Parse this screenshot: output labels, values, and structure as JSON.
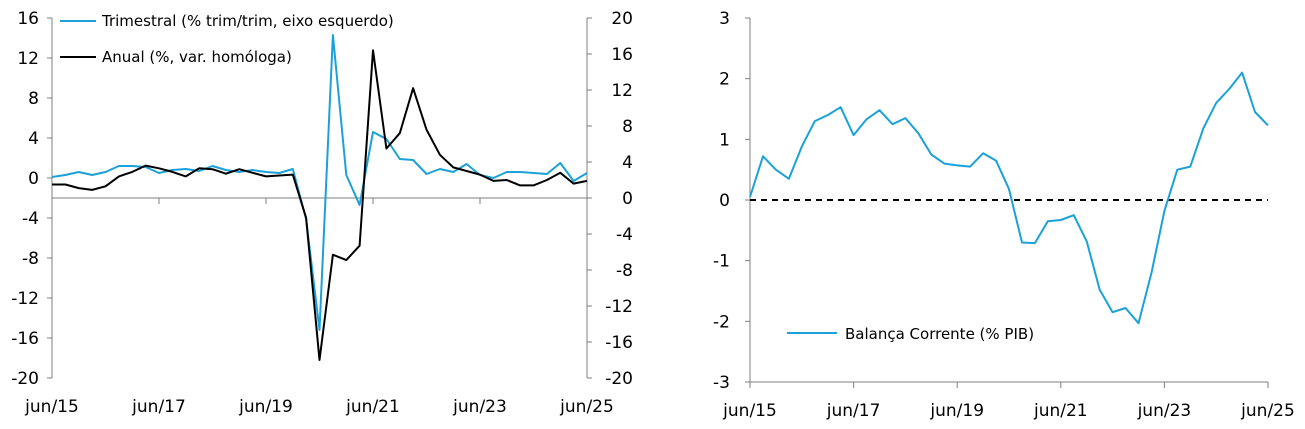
{
  "colors": {
    "trimestral": "#1ba1d9",
    "anual": "#000000",
    "balanca": "#1ba1d9",
    "axis": "#7f7f7f"
  },
  "chart_data": [
    {
      "type": "line",
      "x": [
        "2015-06",
        "2015-09",
        "2015-12",
        "2016-03",
        "2016-06",
        "2016-09",
        "2016-12",
        "2017-03",
        "2017-06",
        "2017-09",
        "2017-12",
        "2018-03",
        "2018-06",
        "2018-09",
        "2018-12",
        "2019-03",
        "2019-06",
        "2019-09",
        "2019-12",
        "2020-03",
        "2020-06",
        "2020-09",
        "2020-12",
        "2021-03",
        "2021-06",
        "2021-09",
        "2021-12",
        "2022-03",
        "2022-06",
        "2022-09",
        "2022-12",
        "2023-03",
        "2023-06",
        "2023-09",
        "2023-12",
        "2024-03",
        "2024-06",
        "2024-09",
        "2024-12",
        "2025-03",
        "2025-06"
      ],
      "x_ticks": [
        "jun/15",
        "jun/17",
        "jun/19",
        "jun/21",
        "jun/23",
        "jun/25"
      ],
      "y_left": {
        "lim": [
          -20,
          16
        ],
        "ticks": [
          "16",
          "12",
          "8",
          "4",
          "0",
          "-4",
          "-8",
          "-12",
          "-16",
          "-20"
        ]
      },
      "y_right": {
        "lim": [
          -20,
          20
        ],
        "ticks": [
          "20",
          "16",
          "12",
          "8",
          "4",
          "0",
          "-4",
          "-8",
          "-12",
          "-16",
          "-20"
        ]
      },
      "series": [
        {
          "name": "Trimestral (% trim/trim, eixo esquerdo)",
          "axis": "left",
          "values": [
            0.1,
            0.3,
            0.6,
            0.3,
            0.6,
            1.2,
            1.2,
            1.1,
            0.5,
            0.8,
            0.9,
            0.7,
            1.2,
            0.8,
            0.6,
            0.8,
            0.6,
            0.5,
            0.9,
            -4.1,
            -15.2,
            14.3,
            0.3,
            -2.7,
            4.6,
            3.9,
            1.9,
            1.8,
            0.4,
            0.9,
            0.6,
            1.4,
            0.3,
            0.0,
            0.6,
            0.6,
            0.5,
            0.4,
            1.5,
            -0.3,
            0.5
          ]
        },
        {
          "name": "Anual (%, var. homóloga)",
          "axis": "right",
          "values": [
            1.5,
            1.5,
            1.1,
            0.9,
            1.3,
            2.4,
            2.9,
            3.6,
            3.3,
            2.9,
            2.4,
            3.3,
            3.2,
            2.7,
            3.2,
            2.8,
            2.4,
            2.5,
            2.6,
            -2.2,
            -18.0,
            -6.3,
            -6.9,
            -5.3,
            16.4,
            5.5,
            7.2,
            12.2,
            7.6,
            4.8,
            3.4,
            3.0,
            2.6,
            1.9,
            2.0,
            1.4,
            1.4,
            2.0,
            2.8,
            1.6,
            1.9
          ]
        }
      ]
    },
    {
      "type": "line",
      "x": [
        "2015-06",
        "2015-09",
        "2015-12",
        "2016-03",
        "2016-06",
        "2016-09",
        "2016-12",
        "2017-03",
        "2017-06",
        "2017-09",
        "2017-12",
        "2018-03",
        "2018-06",
        "2018-09",
        "2018-12",
        "2019-03",
        "2019-06",
        "2019-09",
        "2019-12",
        "2020-03",
        "2020-06",
        "2020-09",
        "2020-12",
        "2021-03",
        "2021-06",
        "2021-09",
        "2021-12",
        "2022-03",
        "2022-06",
        "2022-09",
        "2022-12",
        "2023-03",
        "2023-06",
        "2023-09",
        "2023-12",
        "2024-03",
        "2024-06",
        "2024-09",
        "2024-12",
        "2025-03",
        "2025-06"
      ],
      "x_ticks": [
        "jun/15",
        "jun/17",
        "jun/19",
        "jun/21",
        "jun/23",
        "jun/25"
      ],
      "y": {
        "lim": [
          -3,
          3
        ],
        "ticks": [
          "3",
          "2",
          "1",
          "0",
          "-1",
          "-2",
          "-3"
        ]
      },
      "reference_line": {
        "y": 0,
        "style": "dashed"
      },
      "series": [
        {
          "name": "Balança Corrente (% PIB)",
          "values": [
            0.05,
            0.72,
            0.5,
            0.35,
            0.88,
            1.3,
            1.4,
            1.53,
            1.07,
            1.33,
            1.48,
            1.25,
            1.35,
            1.1,
            0.75,
            0.6,
            0.57,
            0.55,
            0.77,
            0.65,
            0.18,
            -0.7,
            -0.71,
            -0.35,
            -0.33,
            -0.25,
            -0.68,
            -1.48,
            -1.85,
            -1.78,
            -2.03,
            -1.2,
            -0.18,
            0.5,
            0.55,
            1.18,
            1.6,
            1.83,
            2.1,
            1.45,
            1.23
          ]
        }
      ]
    }
  ]
}
